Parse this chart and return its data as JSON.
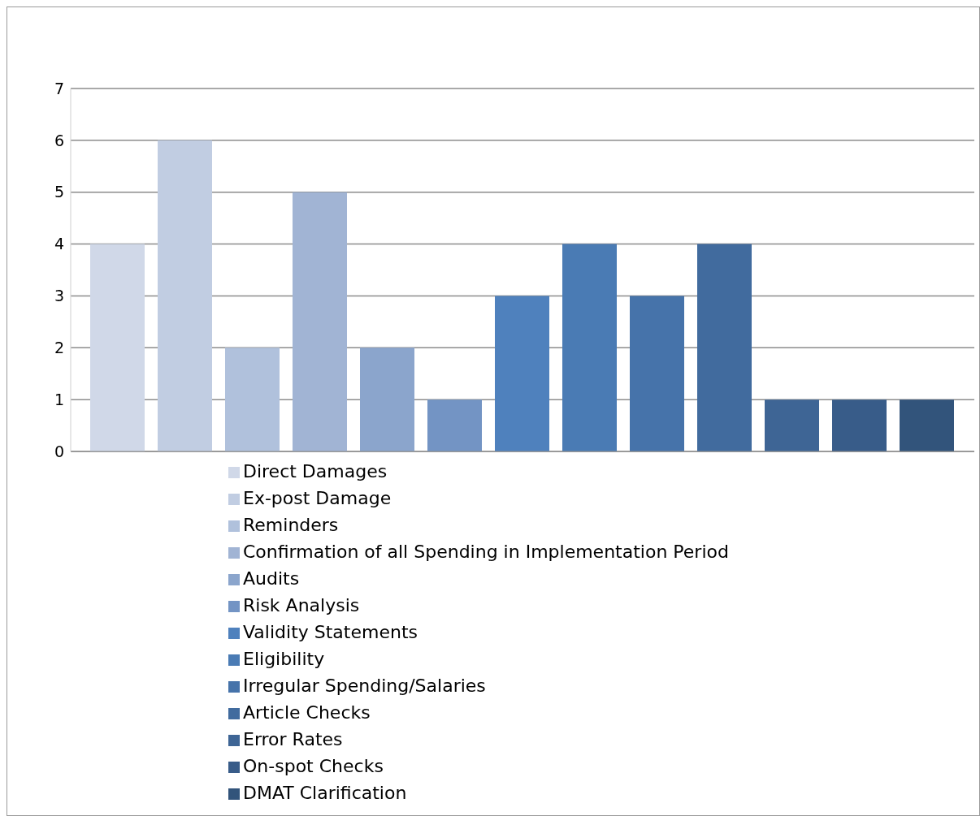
{
  "chart_data": {
    "type": "bar",
    "categories": [
      null
    ],
    "series": [
      {
        "name": "Direct Damages",
        "color": "#d0d8e8",
        "values": [
          4
        ]
      },
      {
        "name": "Ex-post Damage",
        "color": "#c1cde2",
        "values": [
          6
        ]
      },
      {
        "name": "Reminders",
        "color": "#b0c1dc",
        "values": [
          2
        ]
      },
      {
        "name": "Confirmation of all Spending in Implementation Period",
        "color": "#a1b4d4",
        "values": [
          5
        ]
      },
      {
        "name": "Audits",
        "color": "#8ba5cc",
        "values": [
          2
        ]
      },
      {
        "name": "Risk Analysis",
        "color": "#7394c4",
        "values": [
          1
        ]
      },
      {
        "name": "Validity Statements",
        "color": "#4f81bd",
        "values": [
          3
        ]
      },
      {
        "name": "Eligibility",
        "color": "#4a7bb4",
        "values": [
          4
        ]
      },
      {
        "name": "Irregular Spending/Salaries",
        "color": "#4673aa",
        "values": [
          3
        ]
      },
      {
        "name": "Article Checks",
        "color": "#416b9e",
        "values": [
          4
        ]
      },
      {
        "name": "Error Rates",
        "color": "#3e6595",
        "values": [
          1
        ]
      },
      {
        "name": "On-spot Checks",
        "color": "#385c89",
        "values": [
          1
        ]
      },
      {
        "name": "DMAT Clarification",
        "color": "#32547b",
        "values": [
          1
        ]
      }
    ],
    "ylim": [
      0,
      7
    ],
    "yticks": [
      0,
      1,
      2,
      3,
      4,
      5,
      6,
      7
    ],
    "grid": "y",
    "legend": "bottom",
    "tick_labels": "y"
  }
}
